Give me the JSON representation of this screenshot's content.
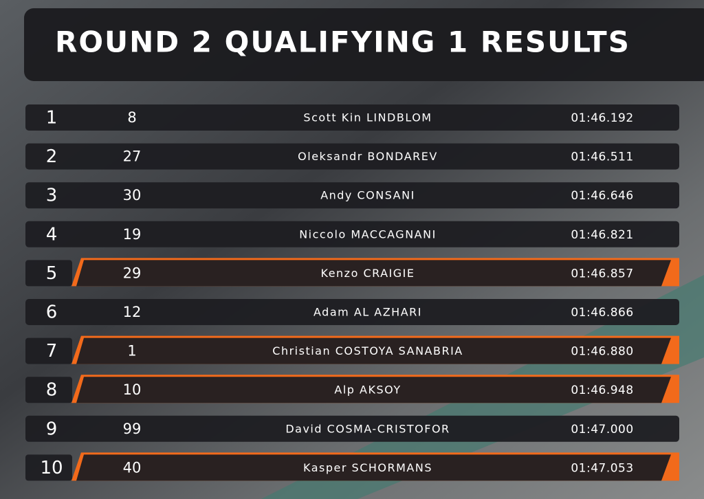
{
  "title": "ROUND 2 QUALIFYING 1 RESULTS",
  "results": [
    {
      "position": 1,
      "number": 8,
      "driver": "Scott Kin LINDBLOM",
      "time": "01:46.192",
      "highlight": false
    },
    {
      "position": 2,
      "number": 27,
      "driver": "Oleksandr BONDAREV",
      "time": "01:46.511",
      "highlight": false
    },
    {
      "position": 3,
      "number": 30,
      "driver": "Andy CONSANI",
      "time": "01:46.646",
      "highlight": false
    },
    {
      "position": 4,
      "number": 19,
      "driver": "Niccolo MACCAGNANI",
      "time": "01:46.821",
      "highlight": false
    },
    {
      "position": 5,
      "number": 29,
      "driver": "Kenzo CRAIGIE",
      "time": "01:46.857",
      "highlight": true
    },
    {
      "position": 6,
      "number": 12,
      "driver": "Adam AL AZHARI",
      "time": "01:46.866",
      "highlight": false
    },
    {
      "position": 7,
      "number": 1,
      "driver": "Christian COSTOYA SANABRIA",
      "time": "01:46.880",
      "highlight": true
    },
    {
      "position": 8,
      "number": 10,
      "driver": "Alp AKSOY",
      "time": "01:46.948",
      "highlight": true
    },
    {
      "position": 9,
      "number": 99,
      "driver": "David COSMA-CRISTOFOR",
      "time": "01:47.000",
      "highlight": false
    },
    {
      "position": 10,
      "number": 40,
      "driver": "Kasper SCHORMANS",
      "time": "01:47.053",
      "highlight": true
    }
  ]
}
